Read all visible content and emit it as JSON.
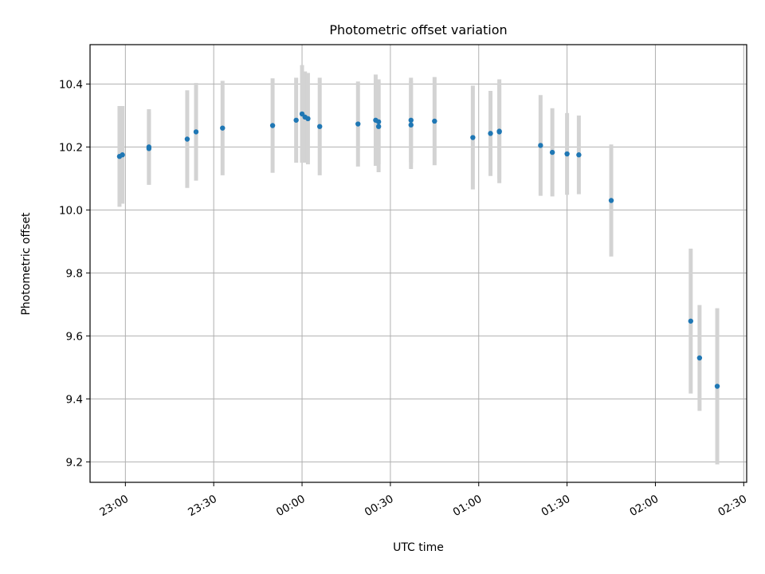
{
  "chart_data": {
    "type": "scatter",
    "title": "Photometric offset variation",
    "xlabel": "UTC time",
    "ylabel": "Photometric offset",
    "x_unit": "UTC time (HH:MM)",
    "xticks": [
      "23:00",
      "23:30",
      "00:00",
      "00:30",
      "01:00",
      "01:30",
      "02:00",
      "02:30"
    ],
    "yticks": [
      "9.2",
      "9.4",
      "9.6",
      "9.8",
      "10.0",
      "10.2",
      "10.4"
    ],
    "xlim": [
      "22:48",
      "02:31"
    ],
    "ylim": [
      9.135,
      10.525
    ],
    "grid": true,
    "legend": "none",
    "marker_color": "#1f77b4",
    "errorbar_color": "#d3d3d3",
    "points": [
      {
        "x": "22:58",
        "y": 10.17,
        "yerr": 0.16
      },
      {
        "x": "22:59",
        "y": 10.175,
        "yerr": 0.155
      },
      {
        "x": "23:08",
        "y": 10.2,
        "yerr": 0.12
      },
      {
        "x": "23:08",
        "y": 10.195,
        "yerr": 0.115
      },
      {
        "x": "23:21",
        "y": 10.225,
        "yerr": 0.155
      },
      {
        "x": "23:24",
        "y": 10.248,
        "yerr": 0.155
      },
      {
        "x": "23:33",
        "y": 10.26,
        "yerr": 0.15
      },
      {
        "x": "23:50",
        "y": 10.268,
        "yerr": 0.15
      },
      {
        "x": "23:58",
        "y": 10.285,
        "yerr": 0.135
      },
      {
        "x": "00:00",
        "y": 10.305,
        "yerr": 0.155
      },
      {
        "x": "00:01",
        "y": 10.295,
        "yerr": 0.145
      },
      {
        "x": "00:02",
        "y": 10.29,
        "yerr": 0.145
      },
      {
        "x": "00:06",
        "y": 10.265,
        "yerr": 0.155
      },
      {
        "x": "00:19",
        "y": 10.273,
        "yerr": 0.135
      },
      {
        "x": "00:25",
        "y": 10.285,
        "yerr": 0.145
      },
      {
        "x": "00:26",
        "y": 10.265,
        "yerr": 0.145
      },
      {
        "x": "00:26",
        "y": 10.28,
        "yerr": 0.135
      },
      {
        "x": "00:37",
        "y": 10.27,
        "yerr": 0.14
      },
      {
        "x": "00:37",
        "y": 10.285,
        "yerr": 0.135
      },
      {
        "x": "00:45",
        "y": 10.282,
        "yerr": 0.14
      },
      {
        "x": "00:58",
        "y": 10.23,
        "yerr": 0.165
      },
      {
        "x": "01:04",
        "y": 10.243,
        "yerr": 0.135
      },
      {
        "x": "01:07",
        "y": 10.25,
        "yerr": 0.165
      },
      {
        "x": "01:07",
        "y": 10.248,
        "yerr": 0.15
      },
      {
        "x": "01:21",
        "y": 10.205,
        "yerr": 0.16
      },
      {
        "x": "01:25",
        "y": 10.183,
        "yerr": 0.14
      },
      {
        "x": "01:30",
        "y": 10.178,
        "yerr": 0.13
      },
      {
        "x": "01:34",
        "y": 10.175,
        "yerr": 0.125
      },
      {
        "x": "01:45",
        "y": 10.03,
        "yerr": 0.178
      },
      {
        "x": "02:12",
        "y": 9.647,
        "yerr": 0.23
      },
      {
        "x": "02:15",
        "y": 9.53,
        "yerr": 0.168
      },
      {
        "x": "02:21",
        "y": 9.44,
        "yerr": 0.248
      }
    ]
  }
}
